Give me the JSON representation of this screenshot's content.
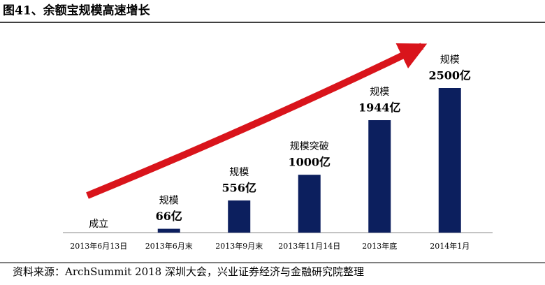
{
  "chart_data": {
    "type": "bar",
    "title": "图41、余额宝规模高速增长",
    "source": "资料来源：ArchSummit 2018 深圳大会，兴业证券经济与金融研究院整理",
    "categories": [
      "2013年6月13日",
      "2013年6月末",
      "2013年9月末",
      "2013年11月14日",
      "2013年底",
      "2014年1月"
    ],
    "values": [
      0,
      66,
      556,
      1000,
      1944,
      2500
    ],
    "label_titles": [
      "成立",
      "规模",
      "规模",
      "规模突破",
      "规模",
      "规模"
    ],
    "value_labels": [
      null,
      "66亿",
      "556亿",
      "1000亿",
      "1944亿",
      "2500亿"
    ],
    "color": "#0c1f5e",
    "arrow_color": "#d9141b"
  }
}
